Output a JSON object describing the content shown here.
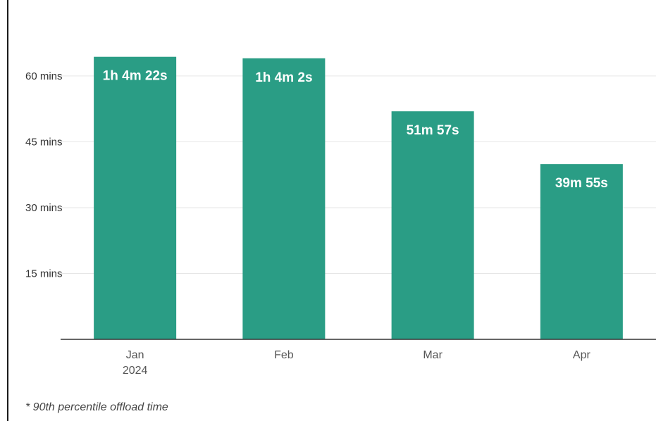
{
  "chart_data": {
    "type": "bar",
    "title": "",
    "xlabel": "",
    "ylabel": "",
    "categories": [
      "Jan",
      "Feb",
      "Mar",
      "Apr"
    ],
    "category_sublabels": [
      "2024",
      "",
      "",
      ""
    ],
    "values": [
      64.37,
      64.03,
      51.95,
      39.92
    ],
    "data_labels": [
      "1h 4m 22s",
      "1h 4m 2s",
      "51m 57s",
      "39m 55s"
    ],
    "ylim": [
      0,
      72.5
    ],
    "yticks": [
      15,
      30,
      45,
      60
    ],
    "ytick_labels": [
      "15 mins",
      "30 mins",
      "45 mins",
      "60 mins"
    ],
    "bar_color": "#2a9d85",
    "grid": true,
    "legend": "none",
    "footnote": "* 90th percentile offload time"
  }
}
